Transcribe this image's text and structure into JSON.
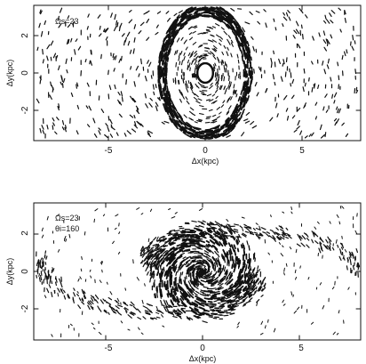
{
  "chart_data": [
    {
      "type": "scatter",
      "subtype": "velocity-vector-field",
      "xlabel": "Δx(kpc)",
      "ylabel": "Δy(kpc)",
      "xlim": [
        -8.5,
        8.5
      ],
      "ylim": [
        -3.6,
        3.6
      ],
      "xticks": [
        -5,
        0,
        5
      ],
      "yticks": [
        2,
        0,
        -2
      ],
      "annotations": [
        "Ωs=23"
      ],
      "features": {
        "ring": {
          "cx": 0,
          "cy": 0,
          "a": 2.3,
          "b": 3.5,
          "shape": "vertical ellipse"
        },
        "core": {
          "cx": 0,
          "cy": 0,
          "r": 0.4
        }
      }
    },
    {
      "type": "scatter",
      "subtype": "velocity-vector-field",
      "xlabel": "Δx(kpc)",
      "ylabel": "Δy(kpc)",
      "xlim": [
        -8.5,
        8.5
      ],
      "ylim": [
        -3.6,
        3.6
      ],
      "xticks": [
        -5,
        0,
        5
      ],
      "yticks": [
        2,
        0,
        -2
      ],
      "annotations": [
        "Ωs=23",
        "θi=160"
      ],
      "features": {
        "spiral_center": {
          "cx": 0,
          "cy": 0
        },
        "arm_extent_x": [
          -7.5,
          6.5
        ]
      }
    }
  ],
  "colors": {
    "ink": "#111111",
    "background": "#ffffff"
  }
}
